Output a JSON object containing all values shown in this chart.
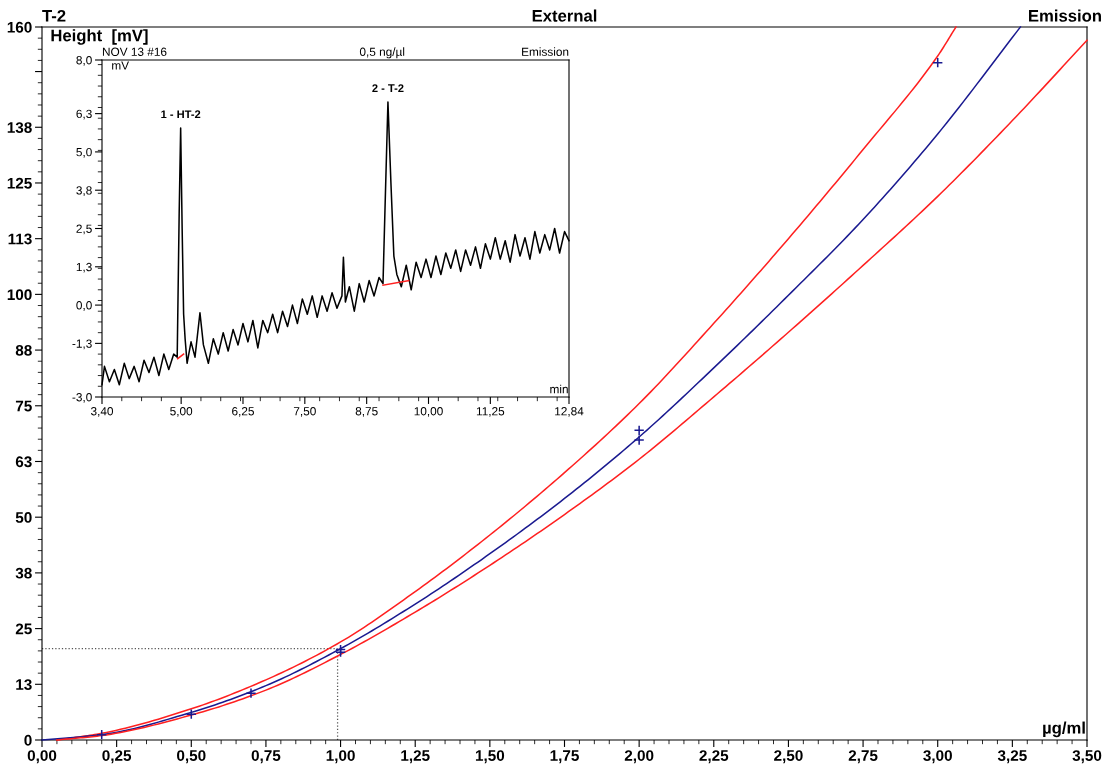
{
  "chart_data": [
    {
      "type": "line",
      "title": "T-2",
      "subtitle": "External",
      "annotations": [
        "Emission"
      ],
      "xlabel": "µg/ml",
      "ylabel": "Height  [mV]",
      "xlim": [
        0,
        3.5
      ],
      "xticks": [
        {
          "value": 0,
          "label": "0,00"
        },
        {
          "value": 0.25,
          "label": "0,25"
        },
        {
          "value": 0.5,
          "label": "0,50"
        },
        {
          "value": 0.75,
          "label": "0,75"
        },
        {
          "value": 1.0,
          "label": "1,00"
        },
        {
          "value": 1.25,
          "label": "1,25"
        },
        {
          "value": 1.5,
          "label": "1,50"
        },
        {
          "value": 1.75,
          "label": "1,75"
        },
        {
          "value": 2.0,
          "label": "2,00"
        },
        {
          "value": 2.25,
          "label": "2,25"
        },
        {
          "value": 2.5,
          "label": "2,50"
        },
        {
          "value": 2.75,
          "label": "2,75"
        },
        {
          "value": 3.0,
          "label": "3,00"
        },
        {
          "value": 3.25,
          "label": "3,25"
        },
        {
          "value": 3.5,
          "label": "3,50"
        }
      ],
      "ylim": [
        0,
        160
      ],
      "yticks": [
        0,
        {
          "value": 12.5,
          "label": "13"
        },
        25,
        {
          "value": 37.5,
          "label": "38"
        },
        50,
        {
          "value": 62.5,
          "label": "63"
        },
        75,
        {
          "value": 87.5,
          "label": "88"
        },
        100,
        {
          "value": 112.5,
          "label": "113"
        },
        125,
        {
          "value": 137.5,
          "label": "138"
        },
        {
          "value": 150,
          "label": null
        },
        160
      ],
      "grid": false,
      "legend": false,
      "ref_lines": [
        {
          "axis": "x",
          "value": 0.99,
          "color": "#555555",
          "line_style": "dotted"
        },
        {
          "axis": "y",
          "value": 20.5,
          "color": "#555555",
          "line_style": "dotted"
        }
      ],
      "series": [
        {
          "type": "line",
          "color": "#ff2020",
          "x": [
            0.05,
            0.2,
            0.5,
            0.75,
            1.0,
            1.25,
            1.5,
            1.75,
            2.0,
            2.25,
            2.5,
            2.75,
            3.0,
            3.061
          ],
          "values": [
            0,
            1.5,
            7,
            13.5,
            22,
            33.3,
            46,
            60,
            75.5,
            93.5,
            112.5,
            132.5,
            153.5,
            160
          ]
        },
        {
          "type": "line",
          "color": "#1a1a90",
          "x": [
            0,
            0.2,
            0.5,
            0.75,
            1.0,
            1.25,
            1.5,
            1.75,
            2.0,
            2.25,
            2.5,
            2.75,
            3.0,
            3.277
          ],
          "values": [
            0,
            1.2,
            6.2,
            12.2,
            20.5,
            30.5,
            41.8,
            54.2,
            68,
            83.5,
            99.8,
            116.8,
            136,
            160
          ]
        },
        {
          "type": "line",
          "color": "#ff2020",
          "x": [
            0.05,
            0.2,
            0.5,
            0.75,
            1.0,
            1.25,
            1.5,
            1.75,
            2.0,
            2.25,
            2.5,
            2.75,
            3.0,
            3.25,
            3.5
          ],
          "values": [
            0,
            1.0,
            5.6,
            11.2,
            19.2,
            28.7,
            39.2,
            50.6,
            63,
            77,
            91.5,
            106.5,
            122,
            139,
            157
          ]
        },
        {
          "type": "scatter",
          "marker": "cross",
          "color": "#1a1a90",
          "x": [
            0.2,
            0.5,
            0.7,
            1.0,
            1.0,
            2.0,
            2.0,
            3.0
          ],
          "values": [
            1.2,
            5.8,
            10.5,
            20.3,
            19.7,
            69.5,
            67.3,
            152
          ]
        }
      ]
    },
    {
      "type": "line",
      "title": "NOV 13 #16",
      "subtitle": "0,5 ng/µl",
      "xlabel": "min",
      "ylabel": "mV",
      "annotations": [
        "Emission",
        {
          "text": "1 - HT-2",
          "x": 4.99,
          "y": 5.78
        },
        {
          "text": "2 - T-2",
          "x": 9.18,
          "y": 6.63
        }
      ],
      "xlim": [
        3.4,
        12.84
      ],
      "xticks": [
        {
          "value": 3.4,
          "label": "3,40"
        },
        {
          "value": 5.0,
          "label": "5,00"
        },
        {
          "value": 6.25,
          "label": "6,25"
        },
        {
          "value": 7.5,
          "label": "7,50"
        },
        {
          "value": 8.75,
          "label": "8,75"
        },
        {
          "value": 10.0,
          "label": "10,00"
        },
        {
          "value": 11.25,
          "label": "11,25"
        },
        {
          "value": 12.84,
          "label": "12,84"
        }
      ],
      "ylim": [
        -3.0,
        8.0
      ],
      "yticks": [
        {
          "value": -3.0,
          "label": "-3,0"
        },
        {
          "value": -1.25,
          "label": "-1,3"
        },
        {
          "value": 0.0,
          "label": "0,0"
        },
        {
          "value": 1.25,
          "label": "1,3"
        },
        {
          "value": 2.5,
          "label": "2,5"
        },
        {
          "value": 3.75,
          "label": "3,8"
        },
        {
          "value": 5.0,
          "label": "5,0"
        },
        {
          "value": 6.25,
          "label": "6,3"
        },
        {
          "value": 8.0,
          "label": "8,0"
        }
      ],
      "grid": false,
      "legend": false,
      "series": [
        {
          "type": "line",
          "color": "#000000",
          "x": [
            3.4,
            3.45,
            3.55,
            3.65,
            3.75,
            3.85,
            3.95,
            4.05,
            4.15,
            4.25,
            4.35,
            4.45,
            4.55,
            4.65,
            4.75,
            4.85,
            4.92,
            4.96,
            4.99,
            5.02,
            5.05,
            5.08,
            5.12,
            5.2,
            5.28,
            5.38,
            5.45,
            5.55,
            5.65,
            5.75,
            5.85,
            5.95,
            6.05,
            6.15,
            6.25,
            6.35,
            6.45,
            6.55,
            6.65,
            6.75,
            6.85,
            6.95,
            7.05,
            7.15,
            7.25,
            7.35,
            7.45,
            7.55,
            7.65,
            7.75,
            7.85,
            7.95,
            8.05,
            8.15,
            8.25,
            8.28,
            8.32,
            8.4,
            8.5,
            8.6,
            8.7,
            8.8,
            8.9,
            9.0,
            9.08,
            9.12,
            9.18,
            9.24,
            9.3,
            9.36,
            9.45,
            9.55,
            9.65,
            9.75,
            9.85,
            9.95,
            10.05,
            10.15,
            10.25,
            10.35,
            10.45,
            10.55,
            10.65,
            10.75,
            10.85,
            10.95,
            11.05,
            11.15,
            11.25,
            11.35,
            11.45,
            11.55,
            11.65,
            11.75,
            11.85,
            11.95,
            12.05,
            12.15,
            12.25,
            12.35,
            12.45,
            12.55,
            12.65,
            12.75,
            12.84
          ],
          "values": [
            -2.6,
            -2.0,
            -2.5,
            -2.1,
            -2.6,
            -1.9,
            -2.4,
            -2.0,
            -2.5,
            -1.8,
            -2.2,
            -1.7,
            -2.3,
            -1.6,
            -2.1,
            -1.6,
            -1.7,
            3.0,
            5.78,
            2.5,
            -0.3,
            -1.1,
            -1.9,
            -1.2,
            -1.7,
            -0.25,
            -1.3,
            -1.9,
            -1.1,
            -1.6,
            -0.9,
            -1.5,
            -0.8,
            -1.3,
            -0.6,
            -1.2,
            -0.5,
            -1.4,
            -0.5,
            -0.9,
            -0.3,
            -0.9,
            -0.2,
            -0.7,
            0.0,
            -0.6,
            0.2,
            -0.3,
            0.3,
            -0.4,
            0.3,
            -0.2,
            0.4,
            -0.1,
            0.3,
            1.56,
            0.1,
            0.6,
            -0.2,
            0.7,
            0.1,
            0.8,
            0.3,
            0.9,
            0.7,
            3.1,
            6.63,
            4.0,
            1.6,
            1.0,
            0.6,
            1.3,
            0.5,
            1.4,
            0.9,
            1.5,
            0.9,
            1.6,
            1.0,
            1.7,
            1.2,
            1.8,
            1.1,
            1.8,
            1.3,
            1.9,
            1.2,
            2.0,
            1.5,
            2.2,
            1.5,
            2.1,
            1.4,
            2.3,
            1.6,
            2.2,
            1.5,
            2.4,
            1.7,
            2.3,
            1.8,
            2.5,
            1.7,
            2.4,
            2.1
          ]
        },
        {
          "type": "line",
          "color": "#ff2020",
          "x": [
            4.93,
            5.05
          ],
          "values": [
            -1.75,
            -1.6
          ]
        },
        {
          "type": "line",
          "color": "#ff2020",
          "x": [
            9.08,
            9.6
          ],
          "values": [
            0.65,
            0.8
          ]
        }
      ]
    }
  ]
}
